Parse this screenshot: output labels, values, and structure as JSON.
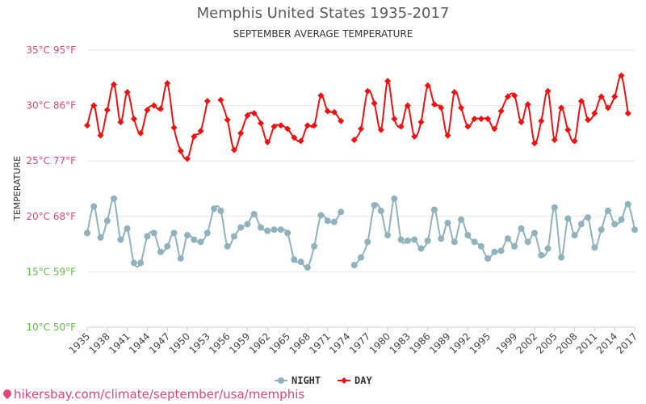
{
  "chart_data": {
    "type": "line",
    "title": "Memphis United States 1935-2017",
    "subtitle": "SEPTEMBER AVERAGE TEMPERATURE",
    "ylabel": "TEMPERATURE",
    "ylim": [
      10,
      35
    ],
    "y_ticks": [
      {
        "value": 35,
        "label": "35°C 95°F",
        "color": "#e0457b"
      },
      {
        "value": 30,
        "label": "30°C 86°F",
        "color": "#e0457b"
      },
      {
        "value": 25,
        "label": "25°C 77°F",
        "color": "#e0457b"
      },
      {
        "value": 20,
        "label": "20°C 68°F",
        "color": "#e0457b"
      },
      {
        "value": 15,
        "label": "15°C 59°F",
        "color": "#5cbf3a"
      },
      {
        "value": 10,
        "label": "10°C 50°F",
        "color": "#5cbf3a"
      }
    ],
    "x_ticks": [
      "1935",
      "1938",
      "1941",
      "1944",
      "1947",
      "1950",
      "1953",
      "1956",
      "1959",
      "1962",
      "1965",
      "1968",
      "1971",
      "1974",
      "1977",
      "1980",
      "1983",
      "1986",
      "1989",
      "1992",
      "1995",
      "1999",
      "2002",
      "2005",
      "2008",
      "2011",
      "2014",
      "2017"
    ],
    "x_start": 1935,
    "x_end": 2017,
    "legend_position": "bottom",
    "grid": true,
    "series": [
      {
        "name": "NIGHT",
        "color": "#90b2bd",
        "marker": "circle",
        "values": [
          18.5,
          20.9,
          18.1,
          19.6,
          21.6,
          17.9,
          18.9,
          15.8,
          15.8,
          18.2,
          18.5,
          16.8,
          17.3,
          18.5,
          16.2,
          18.3,
          17.9,
          17.7,
          18.5,
          20.7,
          20.5,
          17.3,
          18.2,
          19.0,
          19.3,
          20.2,
          19.0,
          18.7,
          18.8,
          18.8,
          18.5,
          16.1,
          15.9,
          15.4,
          17.3,
          20.1,
          19.6,
          19.5,
          20.4,
          null,
          15.6,
          16.3,
          17.7,
          21.0,
          20.5,
          18.3,
          21.6,
          17.9,
          17.8,
          17.9,
          17.1,
          17.8,
          20.6,
          18.0,
          19.4,
          17.7,
          19.7,
          18.3,
          17.7,
          17.3,
          16.2,
          16.8,
          16.9,
          18.0,
          17.3,
          18.9,
          17.7,
          18.5,
          16.5,
          17.1,
          20.8,
          16.3,
          19.8,
          18.3,
          19.3,
          19.9,
          17.2,
          18.8,
          20.5,
          19.3,
          19.7,
          21.1,
          18.8
        ]
      },
      {
        "name": "DAY",
        "color": "#ee1111",
        "marker": "diamond",
        "values": [
          28.2,
          30.0,
          27.3,
          29.6,
          31.9,
          28.5,
          31.2,
          28.8,
          27.5,
          29.6,
          30.0,
          29.7,
          32.0,
          28.0,
          25.9,
          25.2,
          27.2,
          27.7,
          30.4,
          null,
          30.5,
          28.7,
          26.0,
          27.5,
          29.1,
          29.3,
          28.4,
          26.7,
          28.1,
          28.2,
          27.9,
          27.1,
          26.8,
          28.2,
          28.2,
          30.9,
          29.5,
          29.4,
          28.6,
          null,
          26.9,
          27.9,
          31.3,
          30.2,
          27.8,
          32.2,
          28.8,
          28.1,
          30.0,
          27.2,
          28.5,
          31.8,
          30.1,
          29.8,
          27.3,
          31.2,
          29.8,
          28.1,
          28.8,
          28.8,
          28.8,
          27.9,
          29.5,
          30.8,
          30.9,
          28.5,
          30.1,
          26.6,
          28.6,
          31.3,
          26.9,
          29.8,
          27.8,
          26.8,
          30.4,
          28.7,
          29.3,
          30.8,
          29.8,
          30.8,
          32.7,
          29.3,
          null
        ]
      }
    ]
  },
  "footer": {
    "url": "hikersbay.com/climate/september/usa/memphis"
  }
}
